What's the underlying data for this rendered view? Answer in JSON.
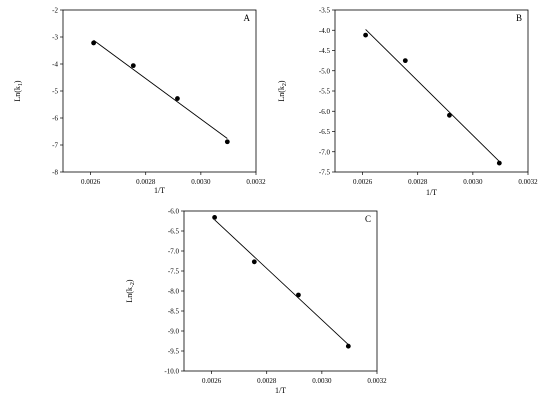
{
  "chart_data": [
    {
      "type": "scatter",
      "panel_label": "A",
      "xlabel": "1/T",
      "ylabel": "Ln(k",
      "ylabel_sub": "1",
      "ylabel_close": ")",
      "xlim": [
        0.0025,
        0.0032
      ],
      "ylim": [
        -8,
        -2
      ],
      "xticks": [
        0.0026,
        0.0028,
        0.003,
        0.0032
      ],
      "xtick_labels": [
        "0.0026",
        "0.0028",
        "0.0030",
        "0.0032"
      ],
      "yticks": [
        -8,
        -7,
        -6,
        -5,
        -4,
        -3,
        -2
      ],
      "ytick_labels": [
        "-8",
        "-7",
        "-6",
        "-5",
        "-4",
        "-3",
        "-2"
      ],
      "points": [
        {
          "x": 0.002611,
          "y": -3.22
        },
        {
          "x": 0.002755,
          "y": -4.06
        },
        {
          "x": 0.002915,
          "y": -5.28
        },
        {
          "x": 0.003096,
          "y": -6.88
        }
      ],
      "fit_line": [
        {
          "x": 0.002611,
          "y": -3.12
        },
        {
          "x": 0.003096,
          "y": -6.76
        }
      ]
    },
    {
      "type": "scatter",
      "panel_label": "B",
      "xlabel": "1/T",
      "ylabel": "Ln(k",
      "ylabel_sub": "2",
      "ylabel_close": ")",
      "xlim": [
        0.0025,
        0.0032
      ],
      "ylim": [
        -7.5,
        -3.5
      ],
      "xticks": [
        0.0026,
        0.0028,
        0.003,
        0.0032
      ],
      "xtick_labels": [
        "0.0026",
        "0.0028",
        "0.0030",
        "0.0032"
      ],
      "yticks": [
        -7.5,
        -7.0,
        -6.5,
        -6.0,
        -5.5,
        -5.0,
        -4.5,
        -4.0,
        -3.5
      ],
      "ytick_labels": [
        "-7.5",
        "-7.0",
        "-6.5",
        "-6.0",
        "-5.5",
        "-5.0",
        "-4.5",
        "-4.0",
        "-3.5"
      ],
      "points": [
        {
          "x": 0.002611,
          "y": -4.12
        },
        {
          "x": 0.002755,
          "y": -4.75
        },
        {
          "x": 0.002915,
          "y": -6.1
        },
        {
          "x": 0.003096,
          "y": -7.28
        }
      ],
      "fit_line": [
        {
          "x": 0.002611,
          "y": -3.98
        },
        {
          "x": 0.003096,
          "y": -7.24
        }
      ]
    },
    {
      "type": "scatter",
      "panel_label": "C",
      "xlabel": "1/T",
      "ylabel": "Ln(k",
      "ylabel_sub": "-2",
      "ylabel_close": ")",
      "xlim": [
        0.0025,
        0.0032
      ],
      "ylim": [
        -10.0,
        -6.0
      ],
      "xticks": [
        0.0026,
        0.0028,
        0.003,
        0.0032
      ],
      "xtick_labels": [
        "0.0026",
        "0.0028",
        "0.0030",
        "0.0032"
      ],
      "yticks": [
        -10.0,
        -9.5,
        -9.0,
        -8.5,
        -8.0,
        -7.5,
        -7.0,
        -6.5,
        -6.0
      ],
      "ytick_labels": [
        "-10.0",
        "-9.5",
        "-9.0",
        "-8.5",
        "-8.0",
        "-7.5",
        "-7.0",
        "-6.5",
        "-6.0"
      ],
      "points": [
        {
          "x": 0.002611,
          "y": -6.16
        },
        {
          "x": 0.002755,
          "y": -7.27
        },
        {
          "x": 0.002915,
          "y": -8.1
        },
        {
          "x": 0.003096,
          "y": -9.38
        }
      ],
      "fit_line": [
        {
          "x": 0.002611,
          "y": -6.22
        },
        {
          "x": 0.003096,
          "y": -9.34
        }
      ]
    }
  ]
}
